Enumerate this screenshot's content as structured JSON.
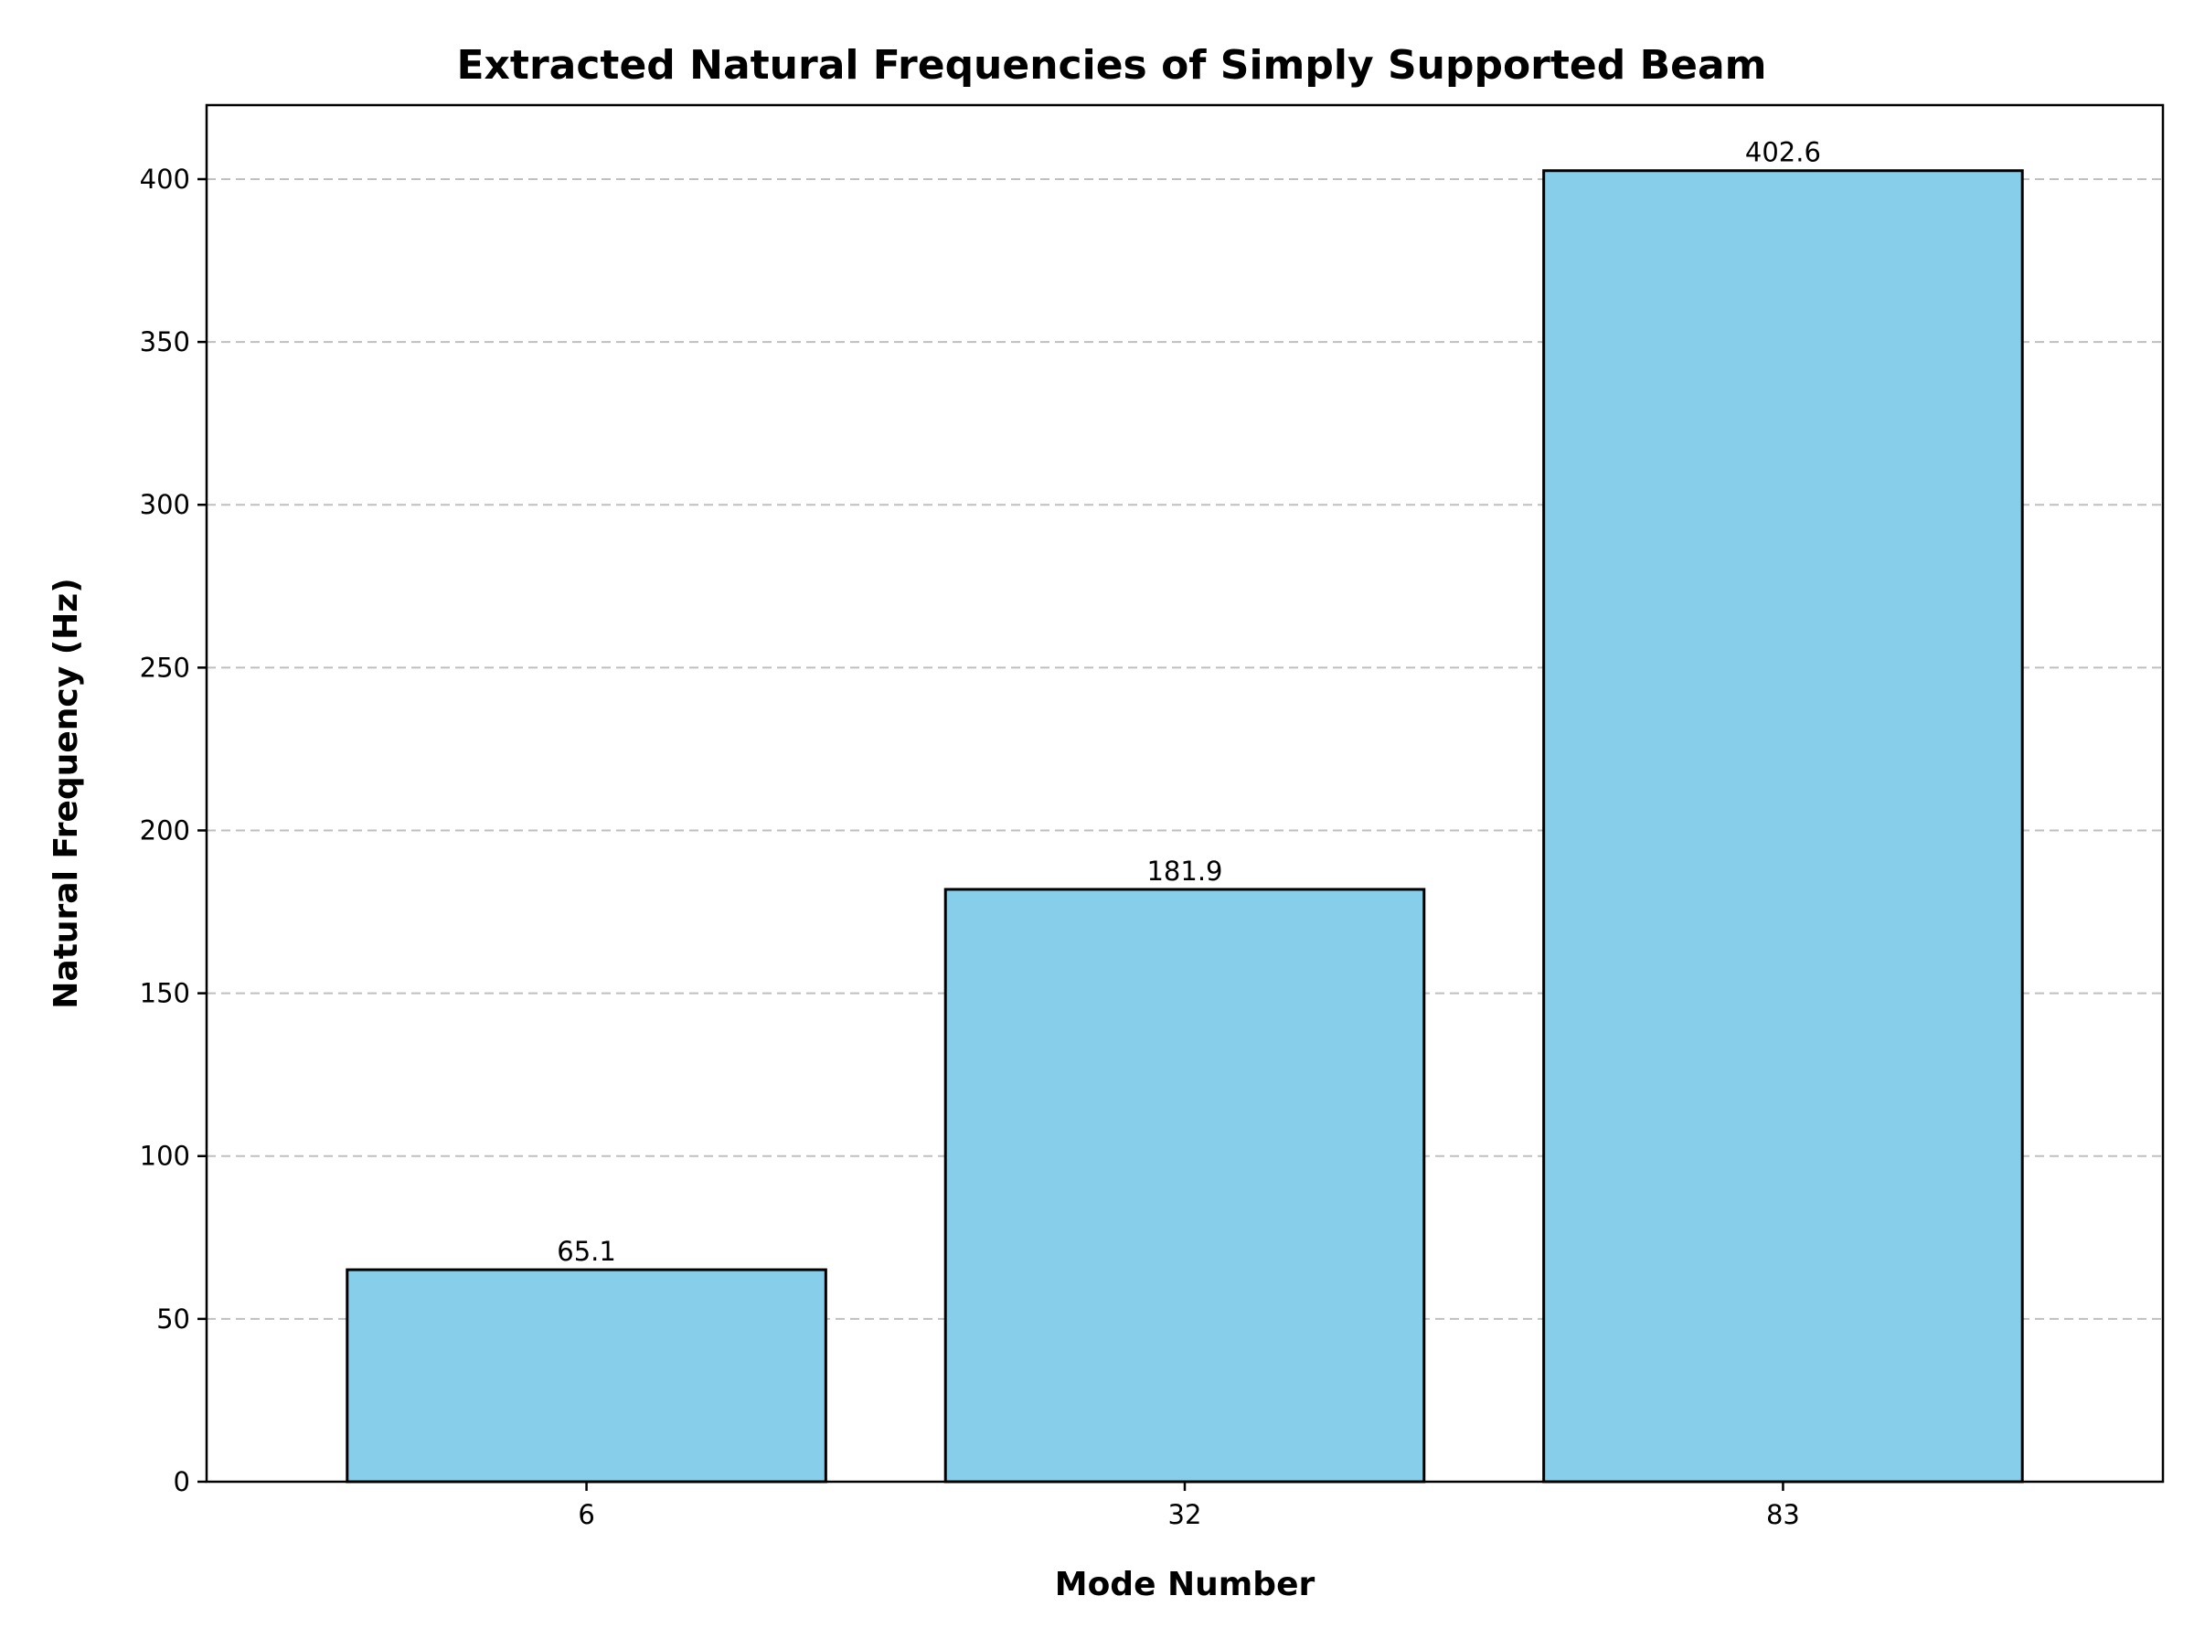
{
  "chart_data": {
    "type": "bar",
    "title": "Extracted Natural Frequencies of Simply Supported Beam",
    "xlabel": "Mode Number",
    "ylabel": "Natural Frequency (Hz)",
    "categories": [
      "6",
      "32",
      "83"
    ],
    "values": [
      65.1,
      181.9,
      402.6
    ],
    "value_labels": [
      "65.1",
      "181.9",
      "402.6"
    ],
    "ylim": [
      0,
      422.73
    ],
    "yticks": [
      0,
      50,
      100,
      150,
      200,
      250,
      300,
      350,
      400
    ],
    "ytick_labels": [
      "0",
      "50",
      "100",
      "150",
      "200",
      "250",
      "300",
      "350",
      "400"
    ],
    "grid": "y-dashed",
    "legend": "none",
    "bar_color": "#87CEEB",
    "edge_color": "#000000",
    "grid_color": "#b0b0b0"
  }
}
